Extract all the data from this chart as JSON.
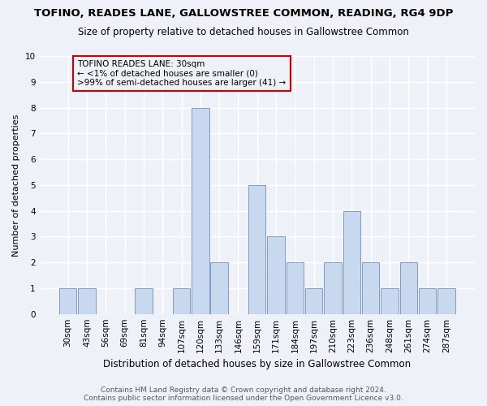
{
  "title_line1": "TOFINO, READES LANE, GALLOWSTREE COMMON, READING, RG4 9DP",
  "title_line2": "Size of property relative to detached houses in Gallowstree Common",
  "xlabel": "Distribution of detached houses by size in Gallowstree Common",
  "ylabel": "Number of detached properties",
  "categories": [
    "30sqm",
    "43sqm",
    "56sqm",
    "69sqm",
    "81sqm",
    "94sqm",
    "107sqm",
    "120sqm",
    "133sqm",
    "146sqm",
    "159sqm",
    "171sqm",
    "184sqm",
    "197sqm",
    "210sqm",
    "223sqm",
    "236sqm",
    "248sqm",
    "261sqm",
    "274sqm",
    "287sqm"
  ],
  "values": [
    1,
    1,
    0,
    0,
    1,
    0,
    1,
    8,
    2,
    0,
    5,
    3,
    2,
    1,
    2,
    4,
    2,
    1,
    2,
    1,
    1
  ],
  "bar_color": "#c8d8ee",
  "bar_edgecolor": "#7090b8",
  "annotation_box_text": "TOFINO READES LANE: 30sqm\n← <1% of detached houses are smaller (0)\n>99% of semi-detached houses are larger (41) →",
  "annotation_box_edgecolor": "#cc0000",
  "ylim": [
    0,
    10
  ],
  "yticks": [
    0,
    1,
    2,
    3,
    4,
    5,
    6,
    7,
    8,
    9,
    10
  ],
  "footer_line1": "Contains HM Land Registry data © Crown copyright and database right 2024.",
  "footer_line2": "Contains public sector information licensed under the Open Government Licence v3.0.",
  "bg_color": "#eef2f8",
  "grid_color": "#ffffff",
  "title_fontsize": 9.5,
  "subtitle_fontsize": 8.5,
  "xlabel_fontsize": 8.5,
  "ylabel_fontsize": 8,
  "tick_fontsize": 7.5,
  "annotation_fontsize": 7.5,
  "footer_fontsize": 6.5
}
